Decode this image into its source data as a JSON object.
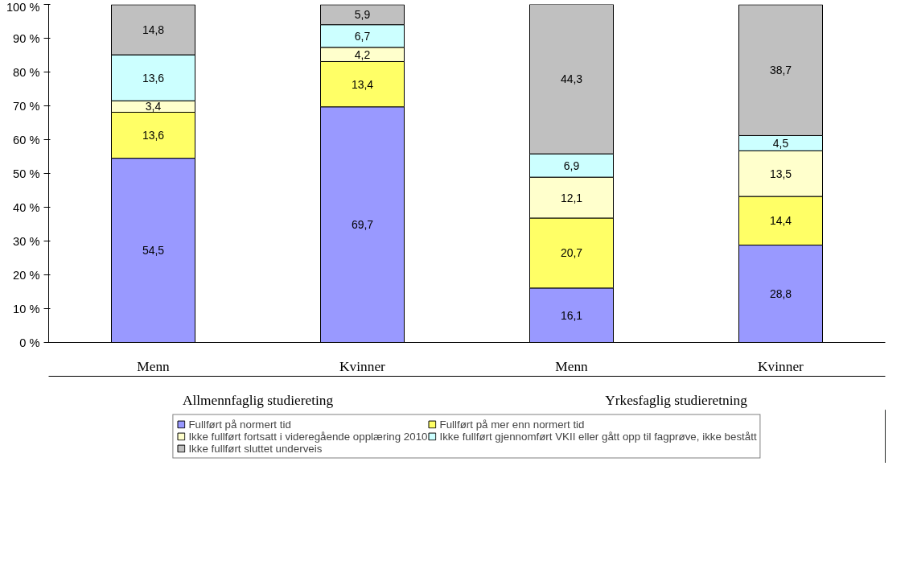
{
  "chart_data": {
    "type": "bar",
    "stacked": true,
    "categories": [
      "Menn",
      "Kvinner",
      "Menn",
      "Kvinner"
    ],
    "series": [
      {
        "name": "Fullført på normert tid",
        "color": "#9999ff",
        "values": [
          54.5,
          69.7,
          16.1,
          28.8
        ],
        "value_labels": [
          "54,5",
          "69,7",
          "16,1",
          "28,8"
        ]
      },
      {
        "name": "Fullført på mer enn normert tid",
        "color": "#ffff66",
        "values": [
          13.6,
          13.4,
          20.7,
          14.4
        ],
        "value_labels": [
          "13,6",
          "13,4",
          "20,7",
          "14,4"
        ]
      },
      {
        "name": "Ikke fullført fortsatt i videregående opplæring 2010",
        "color": "#ffffcc",
        "values": [
          3.4,
          4.2,
          12.1,
          13.5
        ],
        "value_labels": [
          "3,4",
          "4,2",
          "12,1",
          "13,5"
        ]
      },
      {
        "name": "Ikke fullført gjennomført VKII eller gått opp til fagprøve, ikke bestått",
        "color": "#ccffff",
        "values": [
          13.6,
          6.7,
          6.9,
          4.5
        ],
        "value_labels": [
          "13,6",
          "6,7",
          "6,9",
          "4,5"
        ]
      },
      {
        "name": "Ikke fullført sluttet underveis",
        "color": "#c0c0c0",
        "values": [
          14.8,
          5.9,
          44.3,
          38.7
        ],
        "value_labels": [
          "14,8",
          "5,9",
          "44,3",
          "38,7"
        ]
      }
    ],
    "annotations": [
      "Allmennfaglig studiereting",
      "Yrkesfaglig studieretning"
    ],
    "ylim": [
      0,
      100
    ],
    "yticks": [
      {
        "value": 0,
        "label": "0 %"
      },
      {
        "value": 10,
        "label": "10 %"
      },
      {
        "value": 20,
        "label": "20 %"
      },
      {
        "value": 30,
        "label": "30 %"
      },
      {
        "value": 40,
        "label": "40 %"
      },
      {
        "value": 50,
        "label": "50 %"
      },
      {
        "value": 60,
        "label": "60 %"
      },
      {
        "value": 70,
        "label": "70 %"
      },
      {
        "value": 80,
        "label": "80 %"
      },
      {
        "value": 90,
        "label": "90 %"
      },
      {
        "value": 100,
        "label": "100 %"
      }
    ],
    "grid": false,
    "legend": "bottom"
  }
}
